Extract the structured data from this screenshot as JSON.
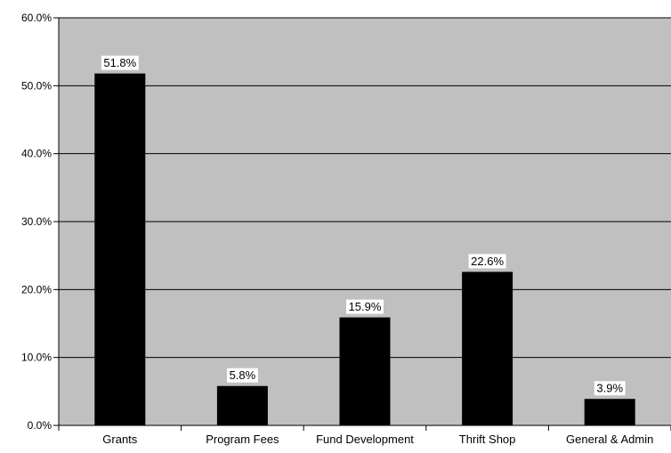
{
  "chart_data": {
    "type": "bar",
    "categories": [
      "Grants",
      "Program Fees",
      "Fund Development",
      "Thrift Shop",
      "General & Admin"
    ],
    "values": [
      51.8,
      5.8,
      15.9,
      22.6,
      3.9
    ],
    "data_labels": [
      "51.8%",
      "5.8%",
      "15.9%",
      "22.6%",
      "3.9%"
    ],
    "y_ticks": [
      0,
      10,
      20,
      30,
      40,
      50,
      60
    ],
    "y_tick_labels": [
      "0.0%",
      "10.0%",
      "20.0%",
      "30.0%",
      "40.0%",
      "50.0%",
      "60.0%"
    ],
    "ylim": [
      0,
      60
    ],
    "grid": true,
    "legend": "none",
    "colors": {
      "plot_background": "#c0c0c0",
      "bar": "#000000",
      "gridline": "#000000",
      "label_box": "#ffffff"
    }
  }
}
